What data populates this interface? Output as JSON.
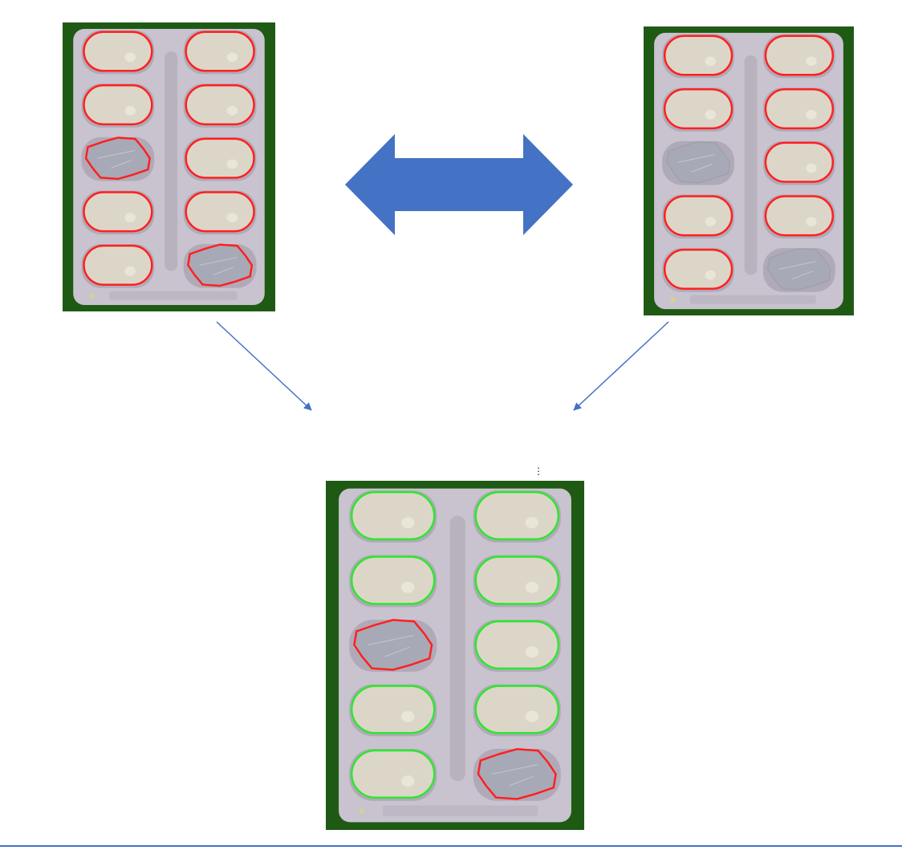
{
  "colors": {
    "background_frame": "#1f5a14",
    "blister": "#c9c3cf",
    "tablet": "#dcd6c8",
    "broken_pocket": "#a7a9b6",
    "outline_detected": "#ff2020",
    "outline_ok": "#2ee62e",
    "arrow": "#4472c4"
  },
  "panels": [
    {
      "id": "top-left",
      "pockets": [
        {
          "row": 1,
          "col": "left",
          "state": "tablet",
          "outline": "red"
        },
        {
          "row": 1,
          "col": "right",
          "state": "tablet",
          "outline": "red"
        },
        {
          "row": 2,
          "col": "left",
          "state": "tablet",
          "outline": "red"
        },
        {
          "row": 2,
          "col": "right",
          "state": "tablet",
          "outline": "red"
        },
        {
          "row": 3,
          "col": "left",
          "state": "broken",
          "outline": "red"
        },
        {
          "row": 3,
          "col": "right",
          "state": "tablet",
          "outline": "red"
        },
        {
          "row": 4,
          "col": "left",
          "state": "tablet",
          "outline": "red"
        },
        {
          "row": 4,
          "col": "right",
          "state": "tablet",
          "outline": "red"
        },
        {
          "row": 5,
          "col": "left",
          "state": "tablet",
          "outline": "red"
        },
        {
          "row": 5,
          "col": "right",
          "state": "broken",
          "outline": "red"
        }
      ]
    },
    {
      "id": "top-right",
      "pockets": [
        {
          "row": 1,
          "col": "left",
          "state": "tablet",
          "outline": "red"
        },
        {
          "row": 1,
          "col": "right",
          "state": "tablet",
          "outline": "red"
        },
        {
          "row": 2,
          "col": "left",
          "state": "tablet",
          "outline": "red"
        },
        {
          "row": 2,
          "col": "right",
          "state": "tablet",
          "outline": "red"
        },
        {
          "row": 3,
          "col": "left",
          "state": "broken",
          "outline": "none"
        },
        {
          "row": 3,
          "col": "right",
          "state": "tablet",
          "outline": "red"
        },
        {
          "row": 4,
          "col": "left",
          "state": "tablet",
          "outline": "red"
        },
        {
          "row": 4,
          "col": "right",
          "state": "tablet",
          "outline": "red"
        },
        {
          "row": 5,
          "col": "left",
          "state": "tablet",
          "outline": "red"
        },
        {
          "row": 5,
          "col": "right",
          "state": "broken",
          "outline": "none"
        }
      ]
    },
    {
      "id": "bottom",
      "pockets": [
        {
          "row": 1,
          "col": "left",
          "state": "tablet",
          "outline": "green"
        },
        {
          "row": 1,
          "col": "right",
          "state": "tablet",
          "outline": "green"
        },
        {
          "row": 2,
          "col": "left",
          "state": "tablet",
          "outline": "green"
        },
        {
          "row": 2,
          "col": "right",
          "state": "tablet",
          "outline": "green"
        },
        {
          "row": 3,
          "col": "left",
          "state": "broken",
          "outline": "red"
        },
        {
          "row": 3,
          "col": "right",
          "state": "tablet",
          "outline": "green"
        },
        {
          "row": 4,
          "col": "left",
          "state": "tablet",
          "outline": "green"
        },
        {
          "row": 4,
          "col": "right",
          "state": "tablet",
          "outline": "green"
        },
        {
          "row": 5,
          "col": "left",
          "state": "tablet",
          "outline": "green"
        },
        {
          "row": 5,
          "col": "right",
          "state": "broken",
          "outline": "red"
        }
      ]
    }
  ],
  "icons": {
    "double_arrow": "double-headed-arrow-icon",
    "arrow_left_down": "arrow-down-right-icon",
    "arrow_right_down": "arrow-down-left-icon",
    "kebab": "kebab-menu-icon"
  },
  "kebab_glyph": "⋮"
}
